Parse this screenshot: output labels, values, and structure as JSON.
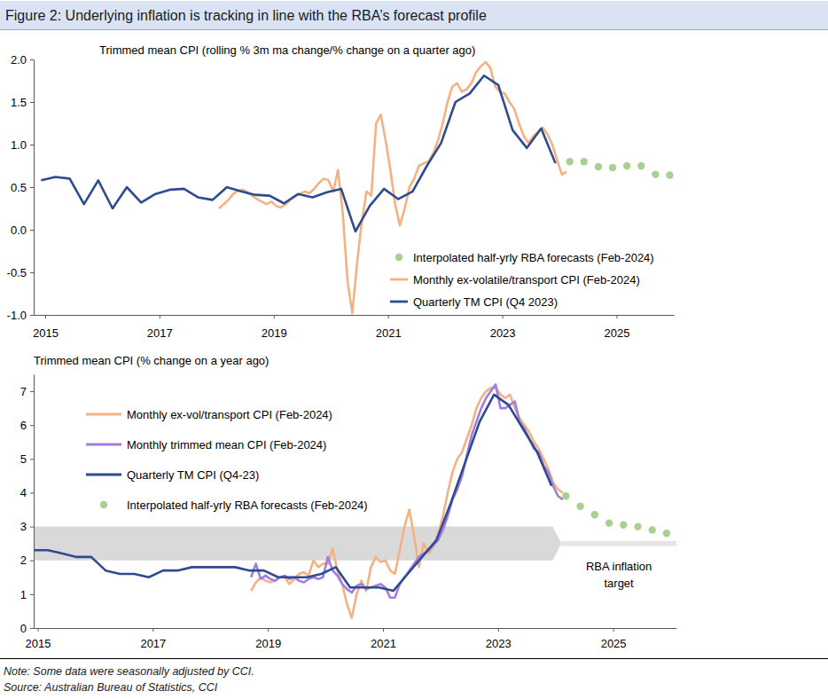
{
  "title": "Figure 2: Underlying inflation is tracking in line with the RBA’s forecast profile",
  "note": "Note: Some data were seasonally adjusted by CCI.",
  "source": "Source: Australian Bureau of Statistics, CCI",
  "chart_data": [
    {
      "type": "line",
      "ylabel": "Trimmed mean CPI (rolling % 3m ma change/% change on a quarter ago)",
      "xlim": [
        2014.8,
        2026.0
      ],
      "xticks": [
        2015,
        2017,
        2019,
        2021,
        2023,
        2025
      ],
      "ylim": [
        -1,
        2
      ],
      "yticks": [
        {
          "value": -1,
          "label": "-1.0"
        },
        -0.5,
        {
          "value": 0,
          "label": "0.0"
        },
        0.5,
        {
          "value": 1,
          "label": "1.0"
        },
        1.5,
        {
          "value": 2,
          "label": "2.0"
        }
      ],
      "grid": false,
      "legend": "lower right",
      "series": [
        {
          "name": "Interpolated half-yrly RBA forecasts (Feb-2024)",
          "type": "scatter",
          "marker": "circle",
          "color": "#a9d18e",
          "x": [
            2024.18,
            2024.43,
            2024.68,
            2024.93,
            2025.18,
            2025.43,
            2025.68,
            2025.93
          ],
          "values": [
            0.8,
            0.8,
            0.74,
            0.73,
            0.75,
            0.75,
            0.65,
            0.64
          ]
        },
        {
          "name": "Monthly ex-volatile/transport CPI (Feb-2024)",
          "type": "line",
          "line_style": "solid",
          "color": "#f4b183",
          "x": [
            2018.042,
            2018.125,
            2018.208,
            2018.292,
            2018.375,
            2018.458,
            2018.542,
            2018.625,
            2018.708,
            2018.792,
            2018.875,
            2018.958,
            2019.042,
            2019.125,
            2019.208,
            2019.292,
            2019.375,
            2019.458,
            2019.542,
            2019.625,
            2019.708,
            2019.792,
            2019.875,
            2019.958,
            2020.042,
            2020.125,
            2020.208,
            2020.292,
            2020.375,
            2020.458,
            2020.542,
            2020.625,
            2020.708,
            2020.792,
            2020.875,
            2020.958,
            2021.042,
            2021.125,
            2021.208,
            2021.292,
            2021.375,
            2021.458,
            2021.542,
            2021.625,
            2021.708,
            2021.792,
            2021.875,
            2021.958,
            2022.042,
            2022.125,
            2022.208,
            2022.292,
            2022.375,
            2022.458,
            2022.542,
            2022.625,
            2022.708,
            2022.792,
            2022.875,
            2022.958,
            2023.042,
            2023.125,
            2023.208,
            2023.292,
            2023.375,
            2023.458,
            2023.542,
            2023.625,
            2023.708,
            2023.792,
            2023.875,
            2023.958,
            2024.042,
            2024.125
          ],
          "values": [
            0.25,
            0.3,
            0.35,
            0.42,
            0.46,
            0.47,
            0.44,
            0.4,
            0.36,
            0.33,
            0.3,
            0.33,
            0.28,
            0.26,
            0.3,
            0.35,
            0.4,
            0.42,
            0.45,
            0.43,
            0.48,
            0.55,
            0.6,
            0.58,
            0.45,
            0.7,
            0.2,
            -0.6,
            -0.98,
            -0.4,
            0.1,
            0.45,
            0.4,
            1.25,
            1.35,
            1.05,
            0.7,
            0.3,
            0.05,
            0.25,
            0.5,
            0.6,
            0.75,
            0.78,
            0.8,
            0.9,
            1.05,
            1.25,
            1.5,
            1.68,
            1.72,
            1.62,
            1.65,
            1.72,
            1.85,
            1.92,
            1.97,
            1.9,
            1.68,
            1.62,
            1.6,
            1.5,
            1.42,
            1.25,
            1.1,
            1.02,
            1.1,
            1.15,
            1.2,
            1.12,
            1.0,
            0.82,
            0.65,
            0.68
          ]
        },
        {
          "name": "Quarterly TM CPI (Q4 2023)",
          "type": "line",
          "line_style": "solid",
          "color": "#2f4b8f",
          "x": [
            2014.93,
            2015.18,
            2015.43,
            2015.68,
            2015.93,
            2016.18,
            2016.43,
            2016.68,
            2016.93,
            2017.18,
            2017.43,
            2017.68,
            2017.93,
            2018.18,
            2018.43,
            2018.68,
            2018.93,
            2019.18,
            2019.43,
            2019.68,
            2019.93,
            2020.18,
            2020.43,
            2020.68,
            2020.93,
            2021.18,
            2021.43,
            2021.68,
            2021.93,
            2022.18,
            2022.43,
            2022.68,
            2022.93,
            2023.18,
            2023.43,
            2023.68,
            2023.93
          ],
          "values": [
            0.58,
            0.62,
            0.6,
            0.3,
            0.58,
            0.25,
            0.5,
            0.32,
            0.42,
            0.47,
            0.48,
            0.38,
            0.35,
            0.5,
            0.45,
            0.41,
            0.4,
            0.31,
            0.42,
            0.38,
            0.44,
            0.48,
            -0.02,
            0.28,
            0.48,
            0.36,
            0.45,
            0.75,
            1.02,
            1.5,
            1.6,
            1.81,
            1.7,
            1.17,
            0.96,
            1.19,
            0.78
          ]
        }
      ]
    },
    {
      "type": "line",
      "ylabel": "Trimmed mean CPI (% change on a year ago)",
      "xlim": [
        2014.93,
        2026.1
      ],
      "xticks": [
        2015,
        2017,
        2019,
        2021,
        2023,
        2025
      ],
      "ylim": [
        0,
        7.5
      ],
      "yticks": [
        0,
        1,
        2,
        3,
        4,
        5,
        6,
        7
      ],
      "grid": false,
      "legend": "upper left",
      "target": {
        "label": "RBA inflation target",
        "color": "#d9d9d9",
        "x": [
          2014.93,
          2023.95,
          2024.1
        ],
        "low": [
          2,
          2,
          2.5
        ],
        "high": [
          3,
          3,
          2.5
        ]
      },
      "target_line": {
        "color": "#e7e6e6",
        "x": [
          2024.1,
          2026.1
        ],
        "values": [
          2.5,
          2.5
        ]
      },
      "series": [
        {
          "name": "Monthly ex-vol/transport CPI (Feb-2024)",
          "type": "line",
          "line_style": "solid",
          "color": "#f4b183",
          "x": [
            2018.708,
            2018.792,
            2018.875,
            2018.958,
            2019.042,
            2019.125,
            2019.208,
            2019.292,
            2019.375,
            2019.458,
            2019.542,
            2019.625,
            2019.708,
            2019.792,
            2019.875,
            2019.958,
            2020.042,
            2020.125,
            2020.208,
            2020.292,
            2020.375,
            2020.458,
            2020.542,
            2020.625,
            2020.708,
            2020.792,
            2020.875,
            2020.958,
            2021.042,
            2021.125,
            2021.208,
            2021.292,
            2021.375,
            2021.458,
            2021.542,
            2021.625,
            2021.708,
            2021.792,
            2021.875,
            2021.958,
            2022.042,
            2022.125,
            2022.208,
            2022.292,
            2022.375,
            2022.458,
            2022.542,
            2022.625,
            2022.708,
            2022.792,
            2022.875,
            2022.958,
            2023.042,
            2023.125,
            2023.208,
            2023.292,
            2023.375,
            2023.458,
            2023.542,
            2023.625,
            2023.708,
            2023.792,
            2023.875,
            2023.958,
            2024.042,
            2024.125
          ],
          "values": [
            1.1,
            1.35,
            1.5,
            1.4,
            1.35,
            1.4,
            1.5,
            1.5,
            1.3,
            1.45,
            1.6,
            1.65,
            1.55,
            2.0,
            1.8,
            1.9,
            1.9,
            2.35,
            1.7,
            1.3,
            0.7,
            0.3,
            1.0,
            1.4,
            1.1,
            1.8,
            2.1,
            1.95,
            2.0,
            1.7,
            1.6,
            2.3,
            3.0,
            3.5,
            2.7,
            1.8,
            2.5,
            2.2,
            2.4,
            2.8,
            3.3,
            4.0,
            4.6,
            5.0,
            5.2,
            5.6,
            6.0,
            6.5,
            6.8,
            7.0,
            7.1,
            7.1,
            6.9,
            6.8,
            6.9,
            6.5,
            6.2,
            6.0,
            5.8,
            5.5,
            5.3,
            5.0,
            4.7,
            4.3,
            4.1,
            4.0
          ]
        },
        {
          "name": "Monthly trimmed mean CPI (Feb-2024)",
          "type": "line",
          "line_style": "solid",
          "color": "#a07de0",
          "x": [
            2018.708,
            2018.792,
            2018.875,
            2018.958,
            2019.042,
            2019.125,
            2019.208,
            2019.292,
            2019.375,
            2019.458,
            2019.542,
            2019.625,
            2019.708,
            2019.792,
            2019.875,
            2019.958,
            2020.042,
            2020.125,
            2020.208,
            2020.292,
            2020.375,
            2020.458,
            2020.542,
            2020.625,
            2020.708,
            2020.792,
            2020.875,
            2020.958,
            2021.042,
            2021.125,
            2021.208,
            2021.292,
            2021.375,
            2021.458,
            2021.542,
            2021.625,
            2021.708,
            2021.792,
            2021.875,
            2021.958,
            2022.042,
            2022.125,
            2022.208,
            2022.292,
            2022.375,
            2022.458,
            2022.542,
            2022.625,
            2022.708,
            2022.792,
            2022.875,
            2022.958,
            2023.042,
            2023.125,
            2023.208,
            2023.292,
            2023.375,
            2023.458,
            2023.542,
            2023.625,
            2023.708,
            2023.792,
            2023.875,
            2023.958,
            2024.042,
            2024.125
          ],
          "values": [
            1.5,
            1.9,
            1.45,
            1.55,
            1.45,
            1.4,
            1.5,
            1.55,
            1.45,
            1.5,
            1.4,
            1.35,
            1.45,
            1.5,
            1.45,
            1.5,
            2.1,
            1.7,
            1.55,
            1.3,
            1.15,
            1.05,
            1.25,
            1.3,
            1.15,
            1.2,
            1.25,
            1.3,
            1.2,
            0.9,
            0.9,
            1.3,
            1.5,
            1.7,
            1.9,
            2.1,
            2.2,
            2.3,
            2.45,
            2.6,
            2.9,
            3.3,
            3.8,
            4.1,
            4.5,
            5.1,
            5.7,
            6.1,
            6.5,
            6.8,
            7.0,
            7.2,
            6.5,
            6.5,
            6.6,
            6.7,
            6.1,
            5.9,
            5.6,
            5.3,
            5.2,
            4.8,
            4.6,
            4.2,
            3.9,
            3.8
          ]
        },
        {
          "name": "Quarterly TM CPI (Q4-23)",
          "type": "line",
          "line_style": "solid",
          "color": "#2f4b8f",
          "x": [
            2014.93,
            2015.18,
            2015.43,
            2015.68,
            2015.93,
            2016.18,
            2016.43,
            2016.68,
            2016.93,
            2017.18,
            2017.43,
            2017.68,
            2017.93,
            2018.18,
            2018.43,
            2018.68,
            2018.93,
            2019.18,
            2019.43,
            2019.68,
            2019.93,
            2020.18,
            2020.43,
            2020.68,
            2020.93,
            2021.18,
            2021.43,
            2021.68,
            2021.93,
            2022.18,
            2022.43,
            2022.68,
            2022.93,
            2023.18,
            2023.43,
            2023.68,
            2023.93
          ],
          "values": [
            2.3,
            2.3,
            2.2,
            2.1,
            2.1,
            1.7,
            1.6,
            1.6,
            1.5,
            1.7,
            1.7,
            1.8,
            1.8,
            1.8,
            1.8,
            1.7,
            1.7,
            1.5,
            1.5,
            1.5,
            1.6,
            1.8,
            1.2,
            1.2,
            1.2,
            1.1,
            1.6,
            2.1,
            2.6,
            3.7,
            4.9,
            6.1,
            6.9,
            6.6,
            5.9,
            5.2,
            4.2
          ]
        },
        {
          "name": "Interpolated half-yrly RBA forecasts (Feb-2024)",
          "type": "scatter",
          "marker": "circle",
          "color": "#a9d18e",
          "x": [
            2024.18,
            2024.43,
            2024.68,
            2024.93,
            2025.18,
            2025.43,
            2025.68,
            2025.93
          ],
          "values": [
            3.9,
            3.6,
            3.35,
            3.1,
            3.05,
            3.0,
            2.9,
            2.8
          ]
        }
      ]
    }
  ]
}
